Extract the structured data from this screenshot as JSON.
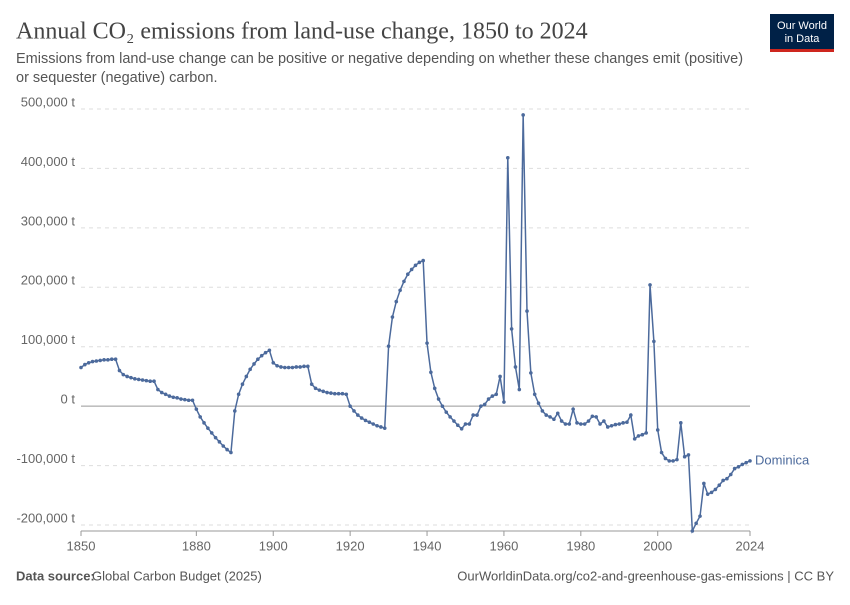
{
  "chart_data": {
    "type": "line",
    "title": "Annual CO₂ emissions from land-use change, 1850 to 2024",
    "subtitle": "Emissions from land-use change can be positive or negative depending on whether these changes emit (positive) or sequester (negative) carbon.",
    "x": [
      1850,
      1851,
      1852,
      1853,
      1854,
      1855,
      1856,
      1857,
      1858,
      1859,
      1860,
      1861,
      1862,
      1863,
      1864,
      1865,
      1866,
      1867,
      1868,
      1869,
      1870,
      1871,
      1872,
      1873,
      1874,
      1875,
      1876,
      1877,
      1878,
      1879,
      1880,
      1881,
      1882,
      1883,
      1884,
      1885,
      1886,
      1887,
      1888,
      1889,
      1890,
      1891,
      1892,
      1893,
      1894,
      1895,
      1896,
      1897,
      1898,
      1899,
      1900,
      1901,
      1902,
      1903,
      1904,
      1905,
      1906,
      1907,
      1908,
      1909,
      1910,
      1911,
      1912,
      1913,
      1914,
      1915,
      1916,
      1917,
      1918,
      1919,
      1920,
      1921,
      1922,
      1923,
      1924,
      1925,
      1926,
      1927,
      1928,
      1929,
      1930,
      1931,
      1932,
      1933,
      1934,
      1935,
      1936,
      1937,
      1938,
      1939,
      1940,
      1941,
      1942,
      1943,
      1944,
      1945,
      1946,
      1947,
      1948,
      1949,
      1950,
      1951,
      1952,
      1953,
      1954,
      1955,
      1956,
      1957,
      1958,
      1959,
      1960,
      1961,
      1962,
      1963,
      1964,
      1965,
      1966,
      1967,
      1968,
      1969,
      1970,
      1971,
      1972,
      1973,
      1974,
      1975,
      1976,
      1977,
      1978,
      1979,
      1980,
      1981,
      1982,
      1983,
      1984,
      1985,
      1986,
      1987,
      1988,
      1989,
      1990,
      1991,
      1992,
      1993,
      1994,
      1995,
      1996,
      1997,
      1998,
      1999,
      2000,
      2001,
      2002,
      2003,
      2004,
      2005,
      2006,
      2007,
      2008,
      2009,
      2010,
      2011,
      2012,
      2013,
      2014,
      2015,
      2016,
      2017,
      2018,
      2019,
      2020,
      2021,
      2022,
      2023,
      2024
    ],
    "series": [
      {
        "name": "Dominica",
        "color": "#4c6a9c",
        "values": [
          65000,
          70000,
          73000,
          75000,
          76000,
          77000,
          78000,
          78000,
          79000,
          79000,
          60000,
          53000,
          50000,
          48000,
          46000,
          45000,
          44000,
          43000,
          42000,
          42000,
          28000,
          23000,
          20000,
          17000,
          15000,
          14000,
          12000,
          11000,
          10000,
          10000,
          -5000,
          -18000,
          -28000,
          -37000,
          -45000,
          -53000,
          -60000,
          -67000,
          -73000,
          -78000,
          -8000,
          20000,
          37000,
          50000,
          62000,
          71000,
          79000,
          85000,
          90000,
          94000,
          73000,
          68000,
          66000,
          65000,
          65000,
          65000,
          66000,
          66000,
          67000,
          67000,
          37000,
          30000,
          27000,
          25000,
          23000,
          22000,
          21000,
          21000,
          21000,
          20000,
          0,
          -8000,
          -15000,
          -20000,
          -24000,
          -27000,
          -30000,
          -33000,
          -35000,
          -37000,
          101000,
          150000,
          176000,
          195000,
          210000,
          222000,
          230000,
          237000,
          242000,
          245000,
          106000,
          57000,
          30000,
          12000,
          0,
          -10000,
          -18000,
          -25000,
          -32000,
          -38000,
          -30000,
          -30000,
          -15000,
          -15000,
          0,
          3000,
          12000,
          17000,
          20000,
          50000,
          7000,
          418000,
          130000,
          66000,
          28000,
          490000,
          160000,
          56000,
          20000,
          5000,
          -8000,
          -15000,
          -18000,
          -22000,
          -12000,
          -25000,
          -30000,
          -30000,
          -5000,
          -28000,
          -30000,
          -30000,
          -25000,
          -17000,
          -18000,
          -30000,
          -25000,
          -35000,
          -33000,
          -31000,
          -30000,
          -28000,
          -27000,
          -15000,
          -55000,
          -50000,
          -48000,
          -45000,
          204000,
          109000,
          -40000,
          -78000,
          -88000,
          -92000,
          -92000,
          -90000,
          -28000,
          -85000,
          -82000,
          -210000,
          -197000,
          -185000,
          -130000,
          -148000,
          -145000,
          -140000,
          -133000,
          -125000,
          -122000,
          -115000,
          -105000,
          -102000,
          -98000,
          -95000,
          -92000
        ]
      }
    ],
    "xlim": [
      1850,
      2024
    ],
    "xticks": [
      1850,
      1880,
      1900,
      1920,
      1940,
      1960,
      1980,
      2000,
      2024
    ],
    "ylim": [
      -210000,
      500000
    ],
    "yticks": [
      {
        "value": -200000,
        "label": "-200,000 t"
      },
      {
        "value": -100000,
        "label": "-100,000 t"
      },
      {
        "value": 0,
        "label": "0 t"
      },
      {
        "value": 100000,
        "label": "100,000 t"
      },
      {
        "value": 200000,
        "label": "200,000 t"
      },
      {
        "value": 300000,
        "label": "300,000 t"
      },
      {
        "value": 400000,
        "label": "400,000 t"
      },
      {
        "value": 500000,
        "label": "500,000 t"
      }
    ],
    "grid": true
  },
  "logo": {
    "line1": "Our World",
    "line2": "in Data"
  },
  "footer": {
    "source_label": "Data source:",
    "source": "Global Carbon Budget (2025)",
    "url": "OurWorldinData.org/co2-and-greenhouse-gas-emissions | CC BY"
  }
}
